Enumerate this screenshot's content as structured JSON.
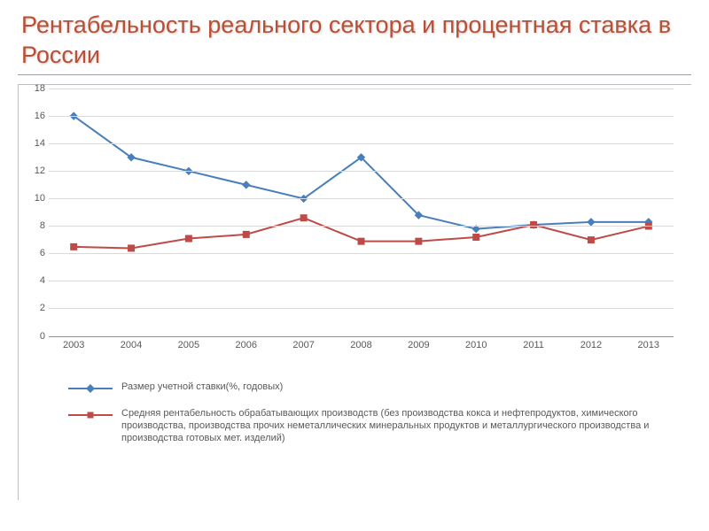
{
  "title": "Рентабельность реального сектора и процентная ставка в России",
  "chart": {
    "type": "line",
    "background_color": "#ffffff",
    "grid_color": "#d9d9d9",
    "axis_color": "#8f8f8f",
    "tick_fontsize": 11,
    "tick_color": "#595959",
    "ylim": [
      0,
      18
    ],
    "ytick_step": 2,
    "yticks": [
      0,
      2,
      4,
      6,
      8,
      10,
      12,
      14,
      16,
      18
    ],
    "categories": [
      "2003",
      "2004",
      "2005",
      "2006",
      "2007",
      "2008",
      "2009",
      "2010",
      "2011",
      "2012",
      "2013"
    ],
    "series": [
      {
        "name": "Размер учетной ставки(%, годовых)",
        "color": "#4a7ebb",
        "line_width": 2,
        "marker": "diamond",
        "marker_size": 8,
        "values": [
          16.0,
          13.0,
          12.0,
          11.0,
          10.0,
          13.0,
          8.8,
          7.8,
          8.1,
          8.3,
          8.3
        ]
      },
      {
        "name": "Средняя рентабельность обрабатывающих производств (без производства кокса и нефтепродуктов, химического производства, производства прочих неметаллических минеральных продуктов и металлургического производства и производства готовых мет. изделий)",
        "color": "#be4b48",
        "line_width": 2,
        "marker": "square",
        "marker_size": 7,
        "values": [
          6.5,
          6.4,
          7.1,
          7.4,
          8.6,
          6.9,
          6.9,
          7.2,
          8.1,
          7.0,
          8.0
        ]
      }
    ]
  }
}
